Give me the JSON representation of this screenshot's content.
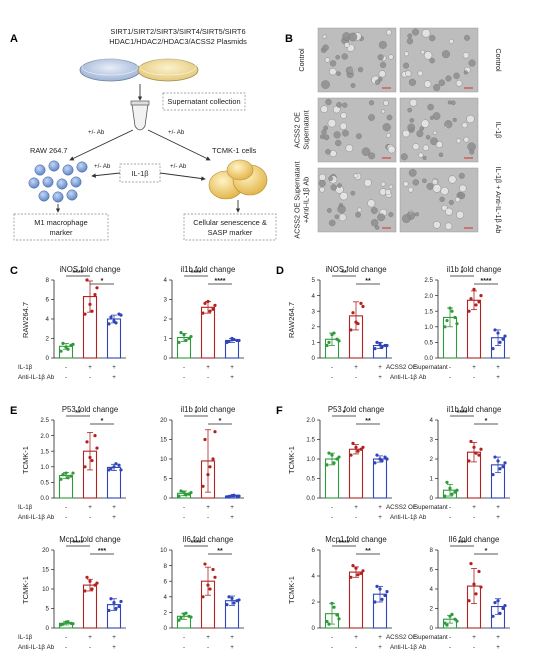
{
  "panelA": {
    "letter": "A",
    "plasmids_line1": "SIRT1/SIRT2/SIRT3/SIRT4/SIRT5/SIRT6",
    "plasmids_line2": "HDAC1/HDAC2/HDAC3/ACSS2 Plasmids",
    "supernatant": "Supernatant collection",
    "ab_left": "+/- Ab",
    "ab_right": "+/- Ab",
    "raw": "RAW 264.7",
    "tcmk": "TCMK-1 cells",
    "il1b": "IL-1β",
    "ab_mid_left": "+/- Ab",
    "ab_mid_right": "+/- Ab",
    "m1": "M1 macrophage",
    "m1b": "marker",
    "sen": "Cellular senescence &",
    "senb": "SASP marker"
  },
  "panelB": {
    "letter": "B",
    "left_labels": [
      "Control",
      "ACSS2 OE Supernatant",
      "ACSS2 OE Supernatant +Anti-IL-1β Ab"
    ],
    "left_labels_wrapped": [
      [
        "Control"
      ],
      [
        "ACSS2 OE",
        "Supernatant"
      ],
      [
        "ACSS2 OE Supernatant",
        "+Anti-IL-1β Ab"
      ]
    ],
    "right_labels": [
      "Control",
      "IL-1β",
      "IL-1β + Anti-IL-1β Ab"
    ],
    "colors": {
      "control": "#2e9b3a",
      "treated": "#b22222",
      "blocked": "#2f45b8"
    }
  },
  "conditions": {
    "c_row1": "IL-1β",
    "c_row2": "Anti-IL-1β Ab",
    "d_row1_main": "ACSS2 OE",
    "d_row1_sub": "Supernatant",
    "d_row2": "Anti-IL-1β Ab",
    "row1_signs": [
      "-",
      "+",
      "+"
    ],
    "row2_signs": [
      "-",
      "-",
      "+"
    ]
  },
  "panels": [
    {
      "letter": "C",
      "ylabel": "RAW264.7",
      "cond": "il1b",
      "charts": [
        {
          "title": "iNOS fold change",
          "yticks": [
            0,
            2,
            4,
            6,
            8
          ],
          "ymax": 8,
          "values": [
            1.2,
            6.3,
            4.0
          ],
          "err": [
            0.3,
            1.6,
            0.4
          ],
          "points": [
            [
              0.7,
              1.1,
              1.3,
              1.5,
              0.9,
              1.4
            ],
            [
              4.5,
              5.5,
              6.5,
              8.0,
              4.8,
              7.2
            ],
            [
              3.5,
              3.8,
              4.5,
              4.2,
              3.6,
              4.4
            ]
          ],
          "sig": [
            "****",
            "*"
          ]
        },
        {
          "title": "il1b  fold change",
          "yticks": [
            0,
            1,
            2,
            3,
            4
          ],
          "ymax": 4,
          "values": [
            1.05,
            2.6,
            0.9
          ],
          "err": [
            0.2,
            0.3,
            0.1
          ],
          "points": [
            [
              0.8,
              1.2,
              1.0,
              1.3,
              0.9,
              1.1
            ],
            [
              2.3,
              2.9,
              2.5,
              2.8,
              2.4,
              2.7
            ],
            [
              0.8,
              1.0,
              0.9,
              0.85,
              0.95,
              0.9
            ]
          ],
          "sig": [
            "****",
            "****"
          ]
        }
      ]
    },
    {
      "letter": "D",
      "ylabel": "RAW264.7",
      "cond": "acss2",
      "charts": [
        {
          "title": "iNOS fold change",
          "yticks": [
            0,
            1,
            2,
            3,
            4,
            5
          ],
          "ymax": 5,
          "values": [
            1.2,
            2.7,
            0.8
          ],
          "err": [
            0.4,
            0.9,
            0.2
          ],
          "points": [
            [
              0.8,
              1.5,
              1.2,
              1.0,
              1.6,
              1.1
            ],
            [
              1.8,
              2.3,
              3.5,
              2.9,
              2.2,
              3.3
            ],
            [
              0.6,
              0.9,
              0.8,
              1.0,
              0.7,
              0.8
            ]
          ],
          "sig": [
            "**",
            "**"
          ]
        },
        {
          "title": "il1b  fold change",
          "yticks": [
            0.0,
            0.5,
            1.0,
            1.5,
            2.0,
            2.5
          ],
          "ymax": 2.5,
          "values": [
            1.3,
            1.85,
            0.65
          ],
          "err": [
            0.3,
            0.3,
            0.25
          ],
          "points": [
            [
              1.0,
              1.6,
              1.3,
              1.2,
              1.5,
              1.1
            ],
            [
              1.5,
              2.2,
              1.8,
              1.9,
              1.7,
              2.0
            ],
            [
              0.3,
              0.8,
              0.6,
              0.9,
              0.5,
              0.7
            ]
          ],
          "sig": [
            "*",
            "****"
          ]
        }
      ]
    },
    {
      "letter": "E",
      "ylabel": "TCMK-1",
      "cond": "il1b",
      "charts": [
        {
          "title": "P53 fold change",
          "yticks": [
            0.0,
            0.5,
            1.0,
            1.5,
            2.0,
            2.5
          ],
          "ymax": 2.5,
          "values": [
            0.72,
            1.5,
            0.98
          ],
          "err": [
            0.1,
            0.6,
            0.1
          ],
          "points": [
            [
              0.6,
              0.8,
              0.7,
              0.75,
              0.65,
              0.8
            ],
            [
              1.0,
              1.3,
              2.0,
              1.8,
              1.2,
              1.6
            ],
            [
              0.9,
              1.0,
              1.05,
              0.95,
              1.1,
              0.9
            ]
          ],
          "sig": [
            "**",
            "*"
          ]
        },
        {
          "title": "il1b  fold change",
          "yticks": [
            0,
            5,
            10,
            15,
            20
          ],
          "ymax": 20,
          "values": [
            1.2,
            9.5,
            0.5
          ],
          "err": [
            0.6,
            8.0,
            0.2
          ],
          "points": [
            [
              0.5,
              1.5,
              1.0,
              1.8,
              0.8,
              1.4
            ],
            [
              3,
              6,
              10,
              15,
              8,
              17
            ],
            [
              0.3,
              0.6,
              0.5,
              0.4,
              0.7,
              0.5
            ]
          ],
          "sig": [
            "*",
            "*"
          ]
        }
      ]
    },
    {
      "letter": "F",
      "ylabel": "TCMK-1",
      "cond": "acss2",
      "charts": [
        {
          "title": "P53 fold change",
          "yticks": [
            0.0,
            0.5,
            1.0,
            1.5,
            2.0
          ],
          "ymax": 2.0,
          "values": [
            1.0,
            1.25,
            1.0
          ],
          "err": [
            0.15,
            0.12,
            0.08
          ],
          "points": [
            [
              0.85,
              1.1,
              1.0,
              1.15,
              0.9,
              1.05
            ],
            [
              1.1,
              1.3,
              1.25,
              1.4,
              1.2,
              1.3
            ],
            [
              0.9,
              1.0,
              1.05,
              1.1,
              0.95,
              1.0
            ]
          ],
          "sig": [
            "*",
            "**"
          ]
        },
        {
          "title": "il1b  fold change",
          "yticks": [
            0,
            1,
            2,
            3,
            4
          ],
          "ymax": 4,
          "values": [
            0.4,
            2.35,
            1.7
          ],
          "err": [
            0.3,
            0.5,
            0.4
          ],
          "points": [
            [
              0.1,
              0.5,
              0.3,
              0.8,
              0.2,
              0.4
            ],
            [
              1.9,
              2.6,
              2.2,
              2.9,
              2.3,
              2.5
            ],
            [
              1.2,
              1.9,
              1.6,
              2.1,
              1.5,
              1.8
            ]
          ],
          "sig": [
            "****",
            "*"
          ]
        }
      ]
    },
    {
      "letter": "",
      "ylabel": "TCMK-1",
      "cond": "il1b",
      "charts": [
        {
          "title": "Mcp1 fold change",
          "yticks": [
            0,
            5,
            10,
            15,
            20
          ],
          "ymax": 20,
          "values": [
            1.2,
            11.0,
            6.0
          ],
          "err": [
            0.4,
            1.5,
            1.5
          ],
          "points": [
            [
              0.8,
              1.5,
              1.2,
              1.0,
              1.6,
              1.1
            ],
            [
              9.5,
              12,
              11,
              13,
              10,
              11.5
            ],
            [
              4.5,
              6.5,
              5.5,
              7.5,
              5.0,
              6.8
            ]
          ],
          "sig": [
            "****",
            "***"
          ]
        },
        {
          "title": "Il6 fold change",
          "yticks": [
            0,
            2,
            4,
            6,
            8,
            10
          ],
          "ymax": 10,
          "values": [
            1.5,
            6.0,
            3.5
          ],
          "err": [
            0.4,
            1.8,
            0.6
          ],
          "points": [
            [
              1.0,
              1.8,
              1.5,
              1.3,
              1.9,
              1.4
            ],
            [
              4,
              5.5,
              7.5,
              8.2,
              5,
              6.5
            ],
            [
              3.0,
              3.8,
              3.5,
              4.0,
              3.2,
              3.6
            ]
          ],
          "sig": [
            "****",
            "**"
          ]
        }
      ]
    },
    {
      "letter": "",
      "ylabel": "TCMK-1",
      "cond": "acss2",
      "charts": [
        {
          "title": "Mcp1 fold change",
          "yticks": [
            0,
            2,
            4,
            6
          ],
          "ymax": 6,
          "values": [
            1.1,
            4.3,
            2.6
          ],
          "err": [
            0.8,
            0.4,
            0.6
          ],
          "points": [
            [
              0.5,
              1.9,
              1.0,
              0.3,
              1.6,
              0.7
            ],
            [
              3.9,
              4.6,
              4.2,
              4.8,
              4.1,
              4.4
            ],
            [
              2.0,
              3.0,
              2.5,
              3.2,
              2.2,
              2.8
            ]
          ],
          "sig": [
            "****",
            "**"
          ]
        },
        {
          "title": "Il6 fold change",
          "yticks": [
            0,
            2,
            4,
            6,
            8
          ],
          "ymax": 8,
          "values": [
            0.9,
            4.3,
            2.2
          ],
          "err": [
            0.4,
            1.8,
            0.8
          ],
          "points": [
            [
              0.5,
              1.2,
              0.9,
              0.3,
              1.4,
              0.7
            ],
            [
              2.8,
              4.5,
              5.8,
              6.6,
              3.5,
              4.2
            ],
            [
              1.2,
              2.8,
              2.0,
              2.6,
              1.5,
              2.3
            ]
          ],
          "sig": [
            "***",
            "*"
          ]
        }
      ]
    }
  ]
}
